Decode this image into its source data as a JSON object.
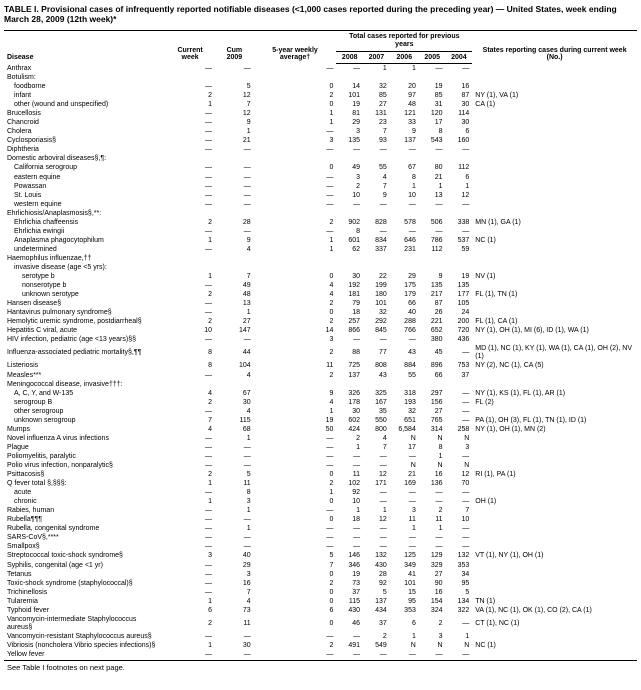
{
  "title": "TABLE I. Provisional cases of infrequently reported notifiable diseases (<1,000 cases reported during the preceding year) — United States, week ending March 28, 2009 (12th week)*",
  "footer": "See Table I footnotes on next page.",
  "columns": {
    "disease": "Disease",
    "current_week": "Current week",
    "cum_2009": "Cum 2009",
    "avg": "5-year weekly average†",
    "year_group": "Total cases reported for previous years",
    "y2008": "2008",
    "y2007": "2007",
    "y2006": "2006",
    "y2005": "2005",
    "y2004": "2004",
    "states": "States reporting cases during current week (No.)"
  },
  "rows": [
    {
      "d": "Anthrax",
      "i": 0,
      "c": [
        "—",
        "—",
        "—",
        "—",
        "1",
        "1",
        "—",
        "—",
        ""
      ]
    },
    {
      "d": "Botulism:",
      "i": 0,
      "c": [
        "",
        "",
        "",
        "",
        "",
        "",
        "",
        "",
        ""
      ]
    },
    {
      "d": "foodborne",
      "i": 1,
      "c": [
        "—",
        "5",
        "0",
        "14",
        "32",
        "20",
        "19",
        "16",
        ""
      ]
    },
    {
      "d": "infant",
      "i": 1,
      "c": [
        "2",
        "12",
        "2",
        "101",
        "85",
        "97",
        "85",
        "87",
        "NY (1), VA (1)"
      ]
    },
    {
      "d": "other (wound and unspecified)",
      "i": 1,
      "c": [
        "1",
        "7",
        "0",
        "19",
        "27",
        "48",
        "31",
        "30",
        "CA (1)"
      ]
    },
    {
      "d": "Brucellosis",
      "i": 0,
      "c": [
        "—",
        "12",
        "1",
        "81",
        "131",
        "121",
        "120",
        "114",
        ""
      ]
    },
    {
      "d": "Chancroid",
      "i": 0,
      "c": [
        "—",
        "9",
        "1",
        "29",
        "23",
        "33",
        "17",
        "30",
        ""
      ]
    },
    {
      "d": "Cholera",
      "i": 0,
      "c": [
        "—",
        "1",
        "—",
        "3",
        "7",
        "9",
        "8",
        "6",
        ""
      ]
    },
    {
      "d": "Cyclosporiasis§",
      "i": 0,
      "c": [
        "—",
        "21",
        "3",
        "135",
        "93",
        "137",
        "543",
        "160",
        ""
      ]
    },
    {
      "d": "Diphtheria",
      "i": 0,
      "c": [
        "—",
        "—",
        "—",
        "—",
        "—",
        "—",
        "—",
        "—",
        ""
      ]
    },
    {
      "d": "Domestic arboviral diseases§,¶:",
      "i": 0,
      "c": [
        "",
        "",
        "",
        "",
        "",
        "",
        "",
        "",
        ""
      ]
    },
    {
      "d": "California serogroup",
      "i": 1,
      "c": [
        "—",
        "—",
        "0",
        "49",
        "55",
        "67",
        "80",
        "112",
        ""
      ]
    },
    {
      "d": "eastern equine",
      "i": 1,
      "c": [
        "—",
        "—",
        "—",
        "3",
        "4",
        "8",
        "21",
        "6",
        ""
      ]
    },
    {
      "d": "Powassan",
      "i": 1,
      "c": [
        "—",
        "—",
        "—",
        "2",
        "7",
        "1",
        "1",
        "1",
        ""
      ]
    },
    {
      "d": "St. Louis",
      "i": 1,
      "c": [
        "—",
        "—",
        "—",
        "10",
        "9",
        "10",
        "13",
        "12",
        ""
      ]
    },
    {
      "d": "western equine",
      "i": 1,
      "c": [
        "—",
        "—",
        "—",
        "—",
        "—",
        "—",
        "—",
        "—",
        ""
      ]
    },
    {
      "d": "Ehrlichiosis/Anaplasmosis§,**:",
      "i": 0,
      "c": [
        "",
        "",
        "",
        "",
        "",
        "",
        "",
        "",
        ""
      ]
    },
    {
      "d": "Ehrlichia chaffeensis",
      "i": 1,
      "c": [
        "2",
        "28",
        "2",
        "902",
        "828",
        "578",
        "506",
        "338",
        "MN (1), GA (1)"
      ]
    },
    {
      "d": "Ehrlichia ewingii",
      "i": 1,
      "c": [
        "—",
        "—",
        "—",
        "8",
        "—",
        "—",
        "—",
        "—",
        ""
      ]
    },
    {
      "d": "Anaplasma phagocytophilum",
      "i": 1,
      "c": [
        "1",
        "9",
        "1",
        "601",
        "834",
        "646",
        "786",
        "537",
        "NC (1)"
      ]
    },
    {
      "d": "undetermined",
      "i": 1,
      "c": [
        "—",
        "4",
        "1",
        "62",
        "337",
        "231",
        "112",
        "59",
        ""
      ]
    },
    {
      "d": "Haemophilus influenzae,††",
      "i": 0,
      "c": [
        "",
        "",
        "",
        "",
        "",
        "",
        "",
        "",
        ""
      ]
    },
    {
      "d": "invasive disease (age <5 yrs):",
      "i": 1,
      "c": [
        "",
        "",
        "",
        "",
        "",
        "",
        "",
        "",
        ""
      ]
    },
    {
      "d": "serotype b",
      "i": 2,
      "c": [
        "1",
        "7",
        "0",
        "30",
        "22",
        "29",
        "9",
        "19",
        "NV (1)"
      ]
    },
    {
      "d": "nonserotype b",
      "i": 2,
      "c": [
        "—",
        "49",
        "4",
        "192",
        "199",
        "175",
        "135",
        "135",
        ""
      ]
    },
    {
      "d": "unknown serotype",
      "i": 2,
      "c": [
        "2",
        "48",
        "4",
        "181",
        "180",
        "179",
        "217",
        "177",
        "FL (1), TN (1)"
      ]
    },
    {
      "d": "Hansen disease§",
      "i": 0,
      "c": [
        "—",
        "13",
        "2",
        "79",
        "101",
        "66",
        "87",
        "105",
        ""
      ]
    },
    {
      "d": "Hantavirus pulmonary syndrome§",
      "i": 0,
      "c": [
        "—",
        "1",
        "0",
        "18",
        "32",
        "40",
        "26",
        "24",
        ""
      ]
    },
    {
      "d": "Hemolytic uremic syndrome, postdiarrheal§",
      "i": 0,
      "c": [
        "2",
        "27",
        "2",
        "257",
        "292",
        "288",
        "221",
        "200",
        "FL (1), CA (1)"
      ]
    },
    {
      "d": "Hepatitis C viral, acute",
      "i": 0,
      "c": [
        "10",
        "147",
        "14",
        "866",
        "845",
        "766",
        "652",
        "720",
        "NY (1), OH (1), MI (6), ID (1), WA (1)"
      ]
    },
    {
      "d": "HIV infection, pediatric (age <13 years)§§",
      "i": 0,
      "c": [
        "—",
        "—",
        "3",
        "—",
        "—",
        "—",
        "380",
        "436",
        ""
      ]
    },
    {
      "d": "Influenza-associated pediatric mortality§,¶¶",
      "i": 0,
      "c": [
        "8",
        "44",
        "2",
        "88",
        "77",
        "43",
        "45",
        "—",
        "MD (1), NC (1), KY (1), WA (1), CA (1), OH (2), NV (1)"
      ]
    },
    {
      "d": "Listeriosis",
      "i": 0,
      "c": [
        "8",
        "104",
        "11",
        "725",
        "808",
        "884",
        "896",
        "753",
        "NY (2), NC (1), CA (5)"
      ]
    },
    {
      "d": "Measles***",
      "i": 0,
      "c": [
        "—",
        "4",
        "2",
        "137",
        "43",
        "55",
        "66",
        "37",
        ""
      ]
    },
    {
      "d": "Meningococcal disease, invasive†††:",
      "i": 0,
      "c": [
        "",
        "",
        "",
        "",
        "",
        "",
        "",
        "",
        ""
      ]
    },
    {
      "d": "A, C, Y, and W-135",
      "i": 1,
      "c": [
        "4",
        "67",
        "9",
        "326",
        "325",
        "318",
        "297",
        "—",
        "NY (1), KS (1), FL (1), AR (1)"
      ]
    },
    {
      "d": "serogroup B",
      "i": 1,
      "c": [
        "2",
        "30",
        "4",
        "178",
        "167",
        "193",
        "156",
        "—",
        "FL (2)"
      ]
    },
    {
      "d": "other serogroup",
      "i": 1,
      "c": [
        "—",
        "4",
        "1",
        "30",
        "35",
        "32",
        "27",
        "—",
        ""
      ]
    },
    {
      "d": "unknown serogroup",
      "i": 1,
      "c": [
        "7",
        "115",
        "19",
        "602",
        "550",
        "651",
        "765",
        "—",
        "PA (1), OH (3), FL (1), TN (1), ID (1)"
      ]
    },
    {
      "d": "Mumps",
      "i": 0,
      "c": [
        "4",
        "68",
        "50",
        "424",
        "800",
        "6,584",
        "314",
        "258",
        "NY (1), OH (1), MN (2)"
      ]
    },
    {
      "d": "Novel influenza A virus infections",
      "i": 0,
      "c": [
        "—",
        "1",
        "—",
        "2",
        "4",
        "N",
        "N",
        "N",
        ""
      ]
    },
    {
      "d": "Plague",
      "i": 0,
      "c": [
        "—",
        "—",
        "—",
        "1",
        "7",
        "17",
        "8",
        "3",
        ""
      ]
    },
    {
      "d": "Poliomyelitis, paralytic",
      "i": 0,
      "c": [
        "—",
        "—",
        "—",
        "—",
        "—",
        "—",
        "1",
        "—",
        ""
      ]
    },
    {
      "d": "Polio virus infection, nonparalytic§",
      "i": 0,
      "c": [
        "—",
        "—",
        "—",
        "—",
        "—",
        "N",
        "N",
        "N",
        ""
      ]
    },
    {
      "d": "Psittacosis§",
      "i": 0,
      "c": [
        "2",
        "5",
        "0",
        "11",
        "12",
        "21",
        "16",
        "12",
        "RI (1), PA (1)"
      ]
    },
    {
      "d": "Q fever total §,§§§:",
      "i": 0,
      "c": [
        "1",
        "11",
        "2",
        "102",
        "171",
        "169",
        "136",
        "70",
        ""
      ]
    },
    {
      "d": "acute",
      "i": 1,
      "c": [
        "—",
        "8",
        "1",
        "92",
        "—",
        "—",
        "—",
        "—",
        ""
      ]
    },
    {
      "d": "chronic",
      "i": 1,
      "c": [
        "1",
        "3",
        "0",
        "10",
        "—",
        "—",
        "—",
        "—",
        "OH (1)"
      ]
    },
    {
      "d": "Rabies, human",
      "i": 0,
      "c": [
        "—",
        "1",
        "—",
        "1",
        "1",
        "3",
        "2",
        "7",
        ""
      ]
    },
    {
      "d": "Rubella¶¶¶",
      "i": 0,
      "c": [
        "—",
        "—",
        "0",
        "18",
        "12",
        "11",
        "11",
        "10",
        ""
      ]
    },
    {
      "d": "Rubella, congenital syndrome",
      "i": 0,
      "c": [
        "—",
        "1",
        "—",
        "—",
        "—",
        "1",
        "1",
        "—",
        ""
      ]
    },
    {
      "d": "SARS-CoV§,****",
      "i": 0,
      "c": [
        "—",
        "—",
        "—",
        "—",
        "—",
        "—",
        "—",
        "—",
        ""
      ]
    },
    {
      "d": "Smallpox§",
      "i": 0,
      "c": [
        "—",
        "—",
        "—",
        "—",
        "—",
        "—",
        "—",
        "—",
        ""
      ]
    },
    {
      "d": "Streptococcal toxic-shock syndrome§",
      "i": 0,
      "c": [
        "3",
        "40",
        "5",
        "146",
        "132",
        "125",
        "129",
        "132",
        "VT (1), NY (1), OH (1)"
      ]
    },
    {
      "d": "Syphilis, congenital (age <1 yr)",
      "i": 0,
      "c": [
        "—",
        "29",
        "7",
        "346",
        "430",
        "349",
        "329",
        "353",
        ""
      ]
    },
    {
      "d": "Tetanus",
      "i": 0,
      "c": [
        "—",
        "3",
        "0",
        "19",
        "28",
        "41",
        "27",
        "34",
        ""
      ]
    },
    {
      "d": "Toxic-shock syndrome (staphylococcal)§",
      "i": 0,
      "c": [
        "—",
        "16",
        "2",
        "73",
        "92",
        "101",
        "90",
        "95",
        ""
      ]
    },
    {
      "d": "Trichinellosis",
      "i": 0,
      "c": [
        "—",
        "7",
        "0",
        "37",
        "5",
        "15",
        "16",
        "5",
        ""
      ]
    },
    {
      "d": "Tularemia",
      "i": 0,
      "c": [
        "1",
        "4",
        "0",
        "115",
        "137",
        "95",
        "154",
        "134",
        "TN (1)"
      ]
    },
    {
      "d": "Typhoid fever",
      "i": 0,
      "c": [
        "6",
        "73",
        "6",
        "430",
        "434",
        "353",
        "324",
        "322",
        "VA (1), NC (1), OK (1), CO (2), CA (1)"
      ]
    },
    {
      "d": "Vancomycin-intermediate Staphylococcus aureus§",
      "i": 0,
      "c": [
        "2",
        "11",
        "0",
        "46",
        "37",
        "6",
        "2",
        "—",
        "CT (1), NC (1)"
      ]
    },
    {
      "d": "Vancomycin-resistant Staphylococcus aureus§",
      "i": 0,
      "c": [
        "—",
        "—",
        "—",
        "—",
        "2",
        "1",
        "3",
        "1",
        ""
      ]
    },
    {
      "d": "Vibriosis (noncholera Vibrio species infections)§",
      "i": 0,
      "c": [
        "1",
        "30",
        "2",
        "491",
        "549",
        "N",
        "N",
        "N",
        "NC (1)"
      ]
    },
    {
      "d": "Yellow fever",
      "i": 0,
      "c": [
        "—",
        "—",
        "—",
        "—",
        "—",
        "—",
        "—",
        "—",
        ""
      ]
    }
  ]
}
